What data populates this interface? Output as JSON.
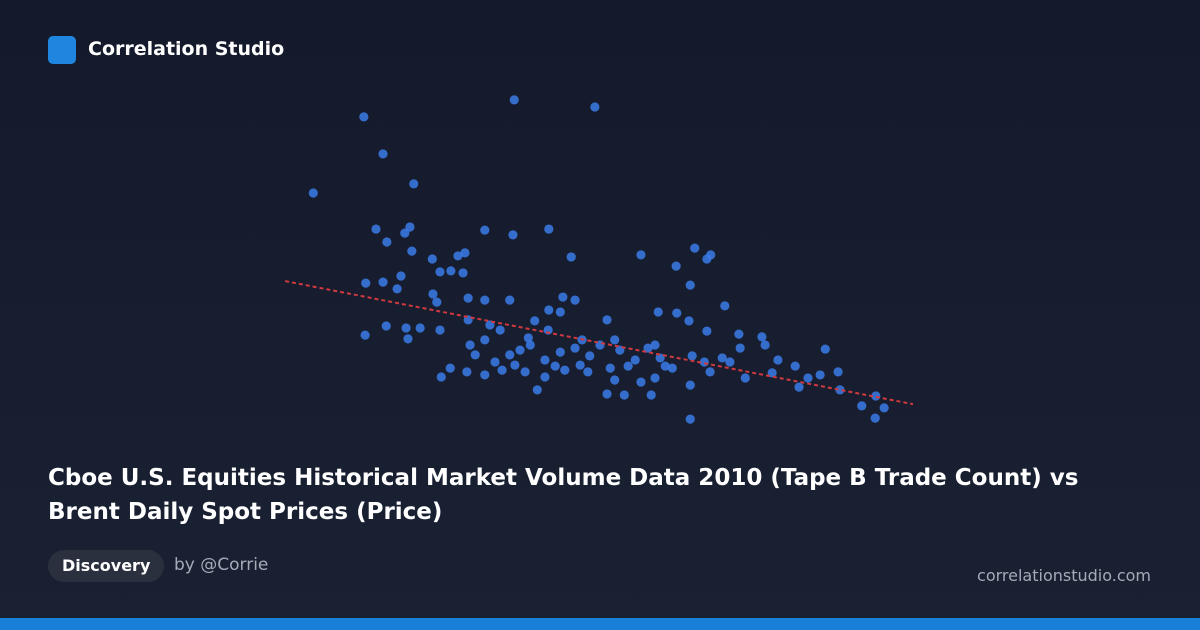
{
  "header": {
    "brand": "Correlation Studio"
  },
  "chart_data": {
    "type": "scatter",
    "title": "Cboe U.S. Equities Historical Market Volume Data 2010 (Tape B Trade Count) vs Brent Daily Spot Prices (Price)",
    "color": "#3b7be8",
    "xlim": [
      0,
      100
    ],
    "ylim": [
      0,
      100
    ],
    "x": [
      5.2,
      13.1,
      16.1,
      20.9,
      36.6,
      49.2,
      15.0,
      16.7,
      20.3,
      19.5,
      20.6,
      23.8,
      32.0,
      36.4,
      42.0,
      45.5,
      56.4,
      64.8,
      67.3,
      66.7,
      27.8,
      28.9,
      25.0,
      26.7,
      28.6,
      18.9,
      16.1,
      13.4,
      18.3,
      23.9,
      24.5,
      29.4,
      32.0,
      35.9,
      42.0,
      44.2,
      46.1,
      39.8,
      43.8,
      51.1,
      59.1,
      62.0,
      64.1,
      61.9,
      69.5,
      63.9,
      66.7,
      71.7,
      75.3,
      85.2,
      13.3,
      16.6,
      19.7,
      20.0,
      21.9,
      25.0,
      29.4,
      32.8,
      34.4,
      29.7,
      32.0,
      35.9,
      37.5,
      39.1,
      41.4,
      43.8,
      46.1,
      48.4,
      50.0,
      53.1,
      55.5,
      57.5,
      59.4,
      61.3,
      64.4,
      66.3,
      69.1,
      71.9,
      72.7,
      75.8,
      77.8,
      80.5,
      82.5,
      84.4,
      87.2,
      87.5,
      90.9,
      93.1,
      94.4,
      93.0,
      64.1,
      51.1,
      53.8,
      58.0,
      40.2,
      25.2,
      29.2,
      32.0,
      34.7,
      38.3,
      41.4,
      44.5,
      48.1,
      52.3,
      56.4,
      58.6,
      64.1,
      67.2,
      30.5,
      33.6,
      36.7,
      43.0,
      46.9,
      51.6,
      54.4,
      60.2,
      70.3,
      76.9,
      81.1,
      26.6,
      38.8,
      41.9,
      47.2,
      52.3,
      58.6
    ],
    "values": [
      69.7,
      92.1,
      81.2,
      72.4,
      97.1,
      95.0,
      59.1,
      55.3,
      59.7,
      57.9,
      52.6,
      50.3,
      58.8,
      57.4,
      59.1,
      50.9,
      51.5,
      53.5,
      51.5,
      50.3,
      51.2,
      52.1,
      46.5,
      46.8,
      46.2,
      45.3,
      43.5,
      43.2,
      41.5,
      40.0,
      37.6,
      38.8,
      38.2,
      38.2,
      35.3,
      39.1,
      38.2,
      32.1,
      34.7,
      32.4,
      34.7,
      34.4,
      42.6,
      48.2,
      36.5,
      32.1,
      29.1,
      28.2,
      27.4,
      23.8,
      27.9,
      30.6,
      30.0,
      26.8,
      30.0,
      29.4,
      32.4,
      30.9,
      29.4,
      25.0,
      26.5,
      22.1,
      23.5,
      25.0,
      20.6,
      22.9,
      24.1,
      21.8,
      25.0,
      23.5,
      20.6,
      24.1,
      21.2,
      18.2,
      21.8,
      20.0,
      21.2,
      24.1,
      15.3,
      25.0,
      20.6,
      18.8,
      15.3,
      16.2,
      17.1,
      11.8,
      7.1,
      10.0,
      6.5,
      3.5,
      3.2,
      10.6,
      10.3,
      10.3,
      11.8,
      15.6,
      17.1,
      16.2,
      17.6,
      17.1,
      15.6,
      17.6,
      17.1,
      14.7,
      14.1,
      15.3,
      13.2,
      17.1,
      22.1,
      20.0,
      19.1,
      18.8,
      19.1,
      18.2,
      18.8,
      18.8,
      20.0,
      16.8,
      12.6,
      18.2,
      27.1,
      29.4,
      26.5,
      26.5,
      25.0
    ],
    "trendline": {
      "color": "#d0393f",
      "x": [
        0.8,
        98.9
      ],
      "values": [
        43.8,
        7.6
      ]
    }
  },
  "footer": {
    "tag": "Discovery",
    "author": "by @Corrie",
    "site": "correlationstudio.com"
  }
}
